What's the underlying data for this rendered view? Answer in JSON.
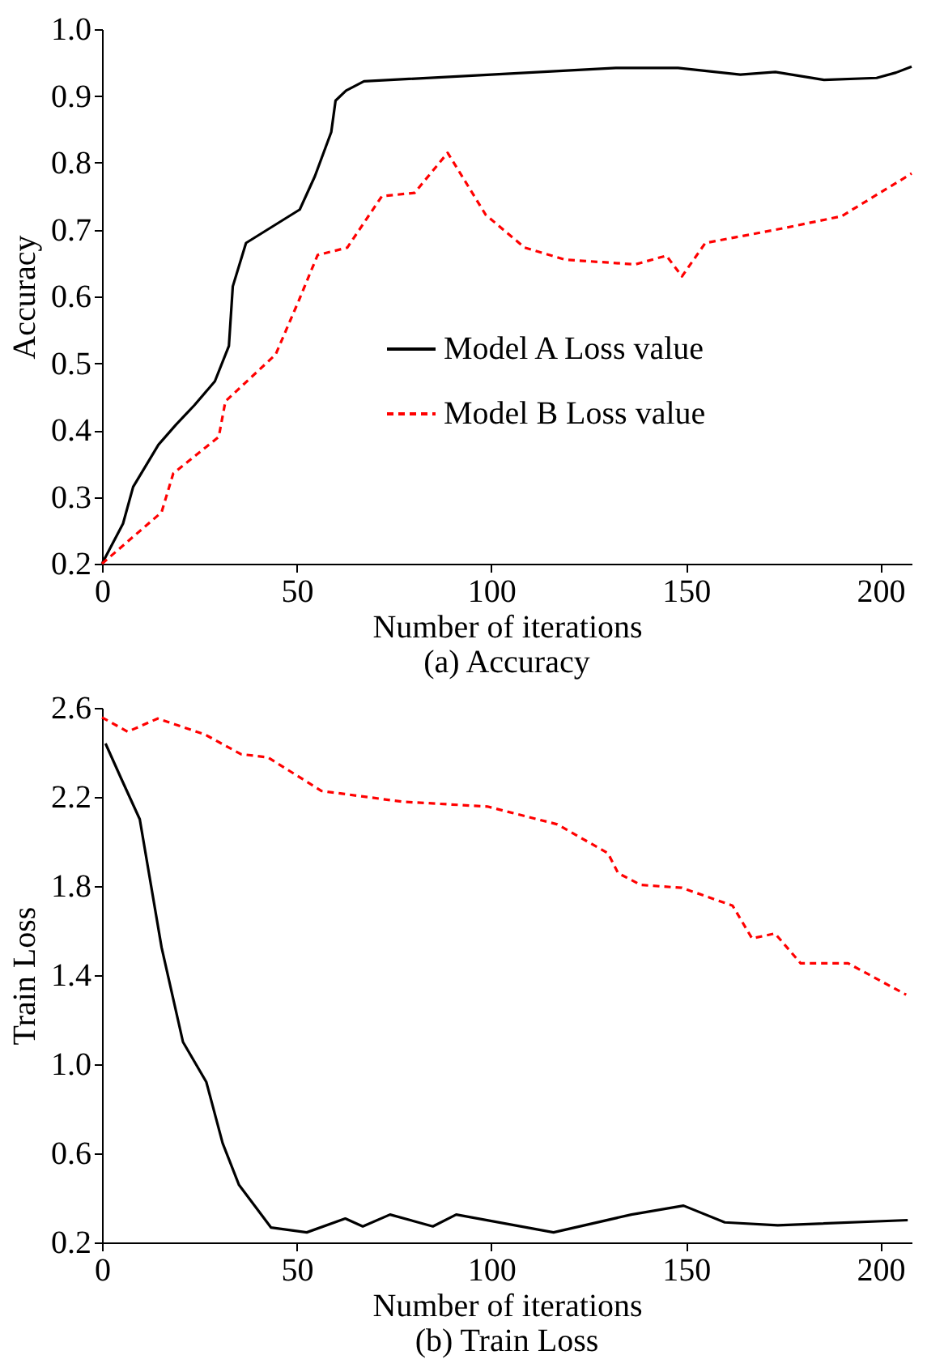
{
  "chart_data": [
    {
      "type": "line",
      "title": "(a) Accuracy",
      "xlabel": "Number of iterations",
      "ylabel": "Accuracy",
      "xlim": [
        0,
        208
      ],
      "xticks": [
        0,
        50,
        100,
        150,
        200
      ],
      "ylim": [
        0.2,
        1.0
      ],
      "yticks": [
        {
          "value": 0.2,
          "label": "0.2"
        },
        {
          "value": 0.3,
          "label": "0.3"
        },
        {
          "value": 0.4,
          "label": "0.4"
        },
        {
          "value": 0.5,
          "label": "0.5"
        },
        {
          "value": 0.6,
          "label": "0.6"
        },
        {
          "value": 0.7,
          "label": "0.7"
        },
        {
          "value": 0.8,
          "label": "0.8"
        },
        {
          "value": 0.9,
          "label": "0.9"
        },
        {
          "value": 1.0,
          "label": "1.0"
        }
      ],
      "grid": false,
      "legend": "right",
      "marker": "none",
      "series": [
        {
          "name": "Model A Loss value",
          "color": "#000000",
          "line_style": "solid",
          "x": [
            0,
            5.4,
            8,
            14.5,
            19,
            23.7,
            29,
            32.6,
            33.6,
            37,
            50.8,
            54.7,
            58.9,
            60,
            62.7,
            67.3,
            100,
            132,
            148,
            164,
            173,
            185.5,
            199,
            204,
            208
          ],
          "values": [
            0.2,
            0.26,
            0.315,
            0.378,
            0.408,
            0.437,
            0.473,
            0.526,
            0.615,
            0.68,
            0.73,
            0.78,
            0.846,
            0.893,
            0.908,
            0.922,
            0.932,
            0.942,
            0.942,
            0.932,
            0.936,
            0.924,
            0.927,
            0.935,
            0.944
          ]
        },
        {
          "name": "Model B Loss value",
          "color": "#ff0000",
          "line_style": "dashed",
          "x": [
            0,
            15.3,
            18.3,
            30,
            31.7,
            44.6,
            50.5,
            55.4,
            63,
            71.9,
            80.3,
            88.8,
            98.6,
            108.6,
            119,
            137,
            145,
            149,
            155,
            175,
            190,
            208
          ],
          "values": [
            0.2,
            0.277,
            0.335,
            0.39,
            0.443,
            0.513,
            0.593,
            0.662,
            0.673,
            0.75,
            0.755,
            0.815,
            0.722,
            0.673,
            0.655,
            0.648,
            0.661,
            0.63,
            0.68,
            0.702,
            0.72,
            0.784
          ]
        }
      ]
    },
    {
      "type": "line",
      "title": "(b) Train Loss",
      "xlabel": "Number of iterations",
      "ylabel": "Train Loss",
      "xlim": [
        0,
        208
      ],
      "xticks": [
        0,
        50,
        100,
        150,
        200
      ],
      "ylim": [
        0.2,
        2.6
      ],
      "yticks": [
        {
          "value": 0.2,
          "label": "0.2"
        },
        {
          "value": 0.6,
          "label": "0.6"
        },
        {
          "value": 1.0,
          "label": "1.0"
        },
        {
          "value": 1.4,
          "label": "1.4"
        },
        {
          "value": 1.8,
          "label": "1.8"
        },
        {
          "value": 2.2,
          "label": "2.2"
        },
        {
          "value": 2.6,
          "label": "2.6"
        }
      ],
      "grid": false,
      "legend": "right",
      "marker": "none",
      "series": [
        {
          "name": "Model A Loss value",
          "color": "#000000",
          "line_style": "solid",
          "x": [
            0.9,
            5,
            9.7,
            15.3,
            20.8,
            26.8,
            31,
            35.2,
            43.4,
            52.6,
            62.5,
            67,
            74,
            85,
            91,
            116,
            136,
            149.4,
            160,
            173.6,
            207
          ],
          "values": [
            2.44,
            2.28,
            2.1,
            1.525,
            1.1,
            0.92,
            0.645,
            0.458,
            0.267,
            0.245,
            0.307,
            0.272,
            0.325,
            0.272,
            0.325,
            0.245,
            0.325,
            0.365,
            0.29,
            0.277,
            0.3
          ]
        },
        {
          "name": "Model B Loss value",
          "color": "#ff0000",
          "line_style": "dashed",
          "x": [
            0,
            6.6,
            14.3,
            26.5,
            35.7,
            42.6,
            56.4,
            77,
            99,
            117,
            130,
            132.6,
            138.4,
            149,
            162,
            167,
            172.9,
            179.5,
            191.7,
            206.6
          ],
          "values": [
            2.557,
            2.493,
            2.552,
            2.48,
            2.392,
            2.378,
            2.227,
            2.179,
            2.157,
            2.077,
            1.947,
            1.858,
            1.805,
            1.792,
            1.712,
            1.565,
            1.587,
            1.453,
            1.453,
            1.312
          ]
        }
      ]
    }
  ]
}
